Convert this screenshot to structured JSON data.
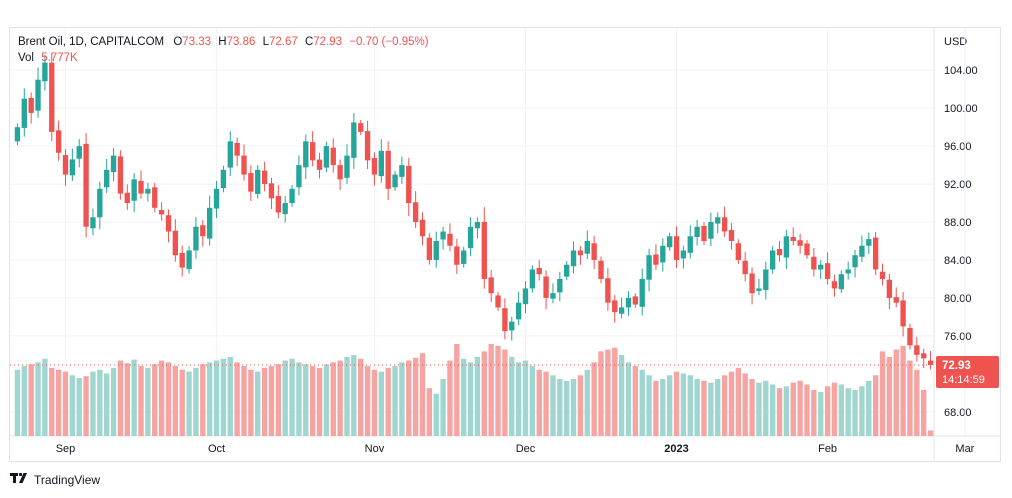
{
  "legend": {
    "symbol": "Brent Oil, 1D, CAPITALCOM",
    "o_label": "O",
    "o": "73.33",
    "h_label": "H",
    "h": "73.86",
    "l_label": "L",
    "l": "72.67",
    "c_label": "C",
    "c": "72.93",
    "change": "−0.70 (−0.95%)",
    "vol_label": "Vol",
    "vol": "5.777K"
  },
  "price_tag": {
    "price": "72.93",
    "countdown": "14:14:59"
  },
  "footer": {
    "logo_text": "TradingView"
  },
  "colors": {
    "up": "#26a69a",
    "down": "#ef5350",
    "up_vol": "#9fd6cf",
    "down_vol": "#f5a4a2",
    "grid": "#f0f3fa"
  },
  "chart_data": {
    "type": "candlestick",
    "currency": "USD",
    "ylim": [
      66.5,
      105.5
    ],
    "y_ticks": [
      "104.00",
      "100.00",
      "96.00",
      "92.00",
      "88.00",
      "84.00",
      "80.00",
      "76.00",
      "68.00"
    ],
    "x_ticks": [
      {
        "label": "Sep",
        "index": 7,
        "bold": false
      },
      {
        "label": "Oct",
        "index": 29,
        "bold": false
      },
      {
        "label": "Nov",
        "index": 52,
        "bold": false
      },
      {
        "label": "Dec",
        "index": 74,
        "bold": false
      },
      {
        "label": "2023",
        "index": 96,
        "bold": true
      },
      {
        "label": "Feb",
        "index": 118,
        "bold": false
      },
      {
        "label": "Mar",
        "index": 138,
        "bold": false
      }
    ],
    "last_price": 72.93,
    "closes": [
      98.0,
      101.0,
      99.5,
      103.0,
      104.8,
      97.5,
      95.3,
      93.0,
      94.6,
      96.0,
      87.5,
      88.5,
      91.5,
      93.5,
      95.0,
      91.0,
      90.0,
      92.5,
      91.0,
      91.5,
      89.5,
      88.8,
      87.0,
      84.5,
      83.2,
      85.0,
      87.5,
      86.5,
      89.5,
      91.5,
      93.5,
      96.5,
      95.0,
      93.0,
      91.2,
      93.5,
      92.0,
      90.5,
      89.0,
      90.0,
      91.5,
      94.0,
      96.5,
      94.5,
      93.5,
      96.0,
      94.0,
      92.5,
      95.0,
      98.5,
      97.5,
      94.5,
      93.0,
      95.5,
      91.5,
      93.0,
      94.0,
      90.0,
      88.0,
      86.5,
      84.0,
      86.0,
      87.0,
      85.5,
      83.5,
      85.0,
      87.5,
      88.0,
      82.0,
      80.5,
      79.0,
      76.5,
      77.5,
      79.5,
      81.0,
      83.0,
      82.5,
      80.0,
      80.5,
      82.0,
      83.5,
      85.0,
      84.5,
      86.0,
      84.0,
      82.0,
      79.5,
      78.5,
      79.0,
      80.0,
      79.3,
      82.0,
      84.5,
      83.5,
      85.5,
      86.5,
      84.0,
      85.0,
      86.5,
      87.5,
      86.0,
      88.0,
      88.5,
      87.0,
      86.0,
      84.0,
      82.5,
      80.5,
      81.0,
      83.0,
      85.0,
      84.5,
      86.5,
      86.0,
      85.5,
      84.5,
      83.0,
      83.5,
      82.0,
      81.0,
      82.5,
      83.0,
      84.5,
      85.5,
      86.2,
      83.0,
      82.0,
      80.0,
      79.5,
      77.0,
      75.0,
      74.0,
      73.63,
      72.93
    ],
    "volumes": [
      0.72,
      0.76,
      0.78,
      0.8,
      0.84,
      0.74,
      0.72,
      0.7,
      0.66,
      0.63,
      0.65,
      0.7,
      0.72,
      0.68,
      0.74,
      0.82,
      0.79,
      0.83,
      0.76,
      0.74,
      0.78,
      0.82,
      0.8,
      0.76,
      0.72,
      0.7,
      0.74,
      0.78,
      0.8,
      0.82,
      0.84,
      0.86,
      0.8,
      0.76,
      0.72,
      0.7,
      0.74,
      0.76,
      0.78,
      0.82,
      0.84,
      0.8,
      0.78,
      0.76,
      0.74,
      0.78,
      0.8,
      0.82,
      0.86,
      0.88,
      0.84,
      0.76,
      0.72,
      0.7,
      0.74,
      0.76,
      0.8,
      0.82,
      0.85,
      0.9,
      0.52,
      0.46,
      0.62,
      0.82,
      1.0,
      0.84,
      0.8,
      0.86,
      0.92,
      1.0,
      0.98,
      0.94,
      0.86,
      0.8,
      0.82,
      0.76,
      0.72,
      0.7,
      0.66,
      0.62,
      0.6,
      0.62,
      0.66,
      0.72,
      0.8,
      0.92,
      0.94,
      0.96,
      0.88,
      0.8,
      0.76,
      0.72,
      0.66,
      0.6,
      0.62,
      0.66,
      0.7,
      0.68,
      0.66,
      0.62,
      0.6,
      0.58,
      0.62,
      0.66,
      0.7,
      0.74,
      0.68,
      0.62,
      0.58,
      0.6,
      0.56,
      0.52,
      0.54,
      0.58,
      0.6,
      0.56,
      0.5,
      0.48,
      0.54,
      0.58,
      0.56,
      0.52,
      0.5,
      0.54,
      0.6,
      0.66,
      0.92,
      0.86,
      0.94,
      0.98,
      0.82,
      0.72,
      0.5,
      0.06
    ]
  }
}
